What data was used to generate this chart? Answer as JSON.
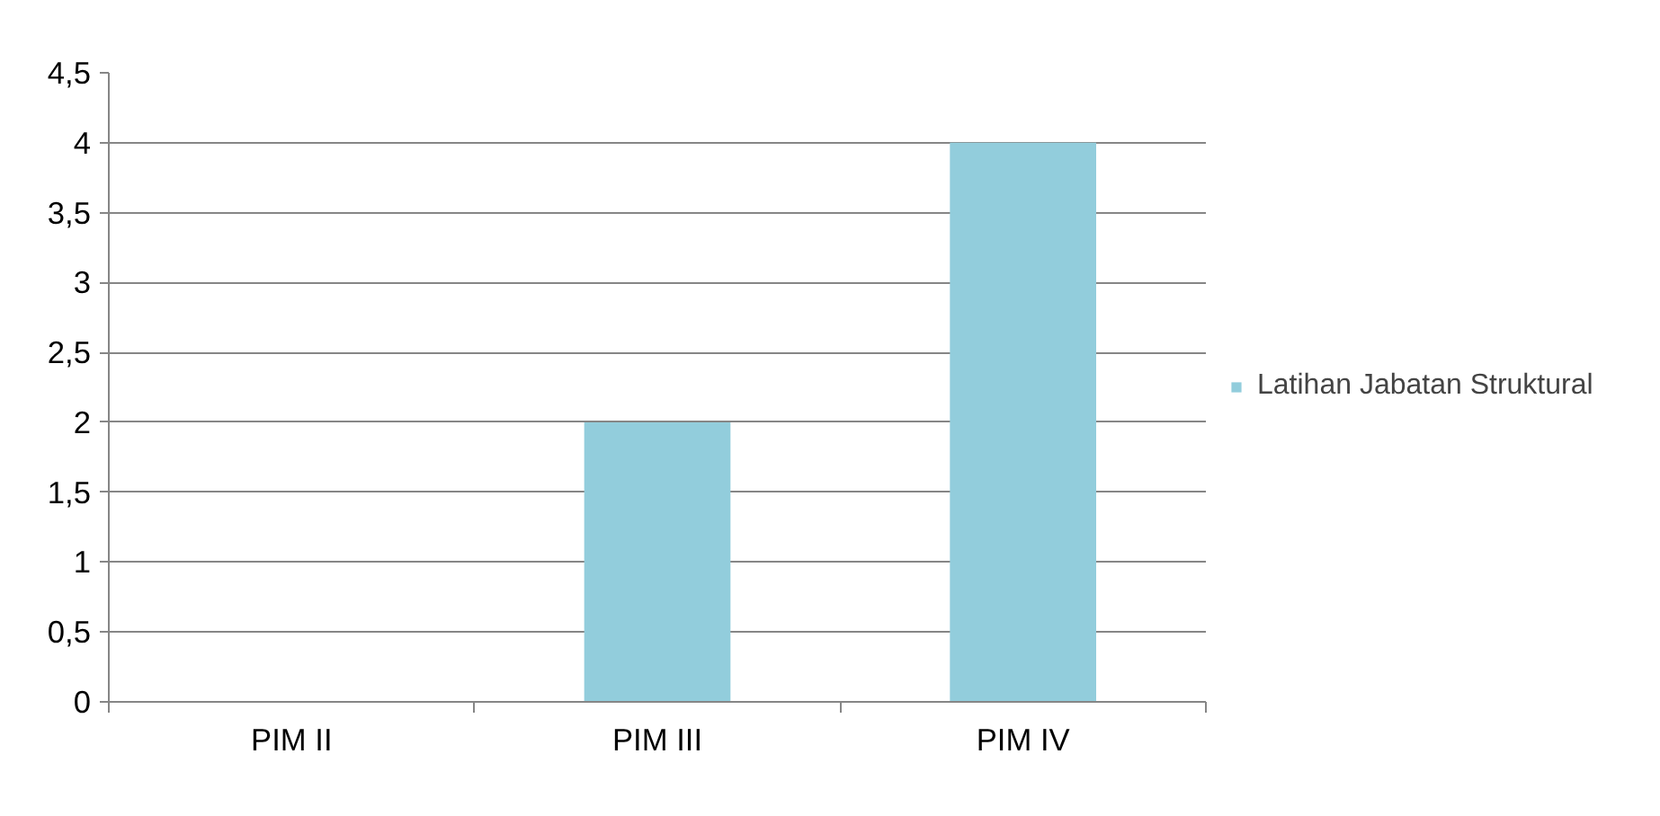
{
  "chart_data": {
    "type": "bar",
    "categories": [
      "PIM II",
      "PIM III",
      "PIM IV"
    ],
    "series": [
      {
        "name": "Latihan Jabatan Struktural",
        "color": "#92cddc",
        "values": [
          0,
          2,
          4
        ]
      }
    ],
    "ylim": [
      0,
      4.5
    ],
    "yticks": [
      0,
      {
        "value": 0.5,
        "label": "0,5"
      },
      1,
      {
        "value": 1.5,
        "label": "1,5"
      },
      2,
      {
        "value": 2.5,
        "label": "2,5"
      },
      3,
      {
        "value": 3.5,
        "label": "3,5"
      },
      4,
      {
        "value": 4.5,
        "label": "4,5"
      }
    ],
    "grid": "y",
    "legend": "right"
  }
}
